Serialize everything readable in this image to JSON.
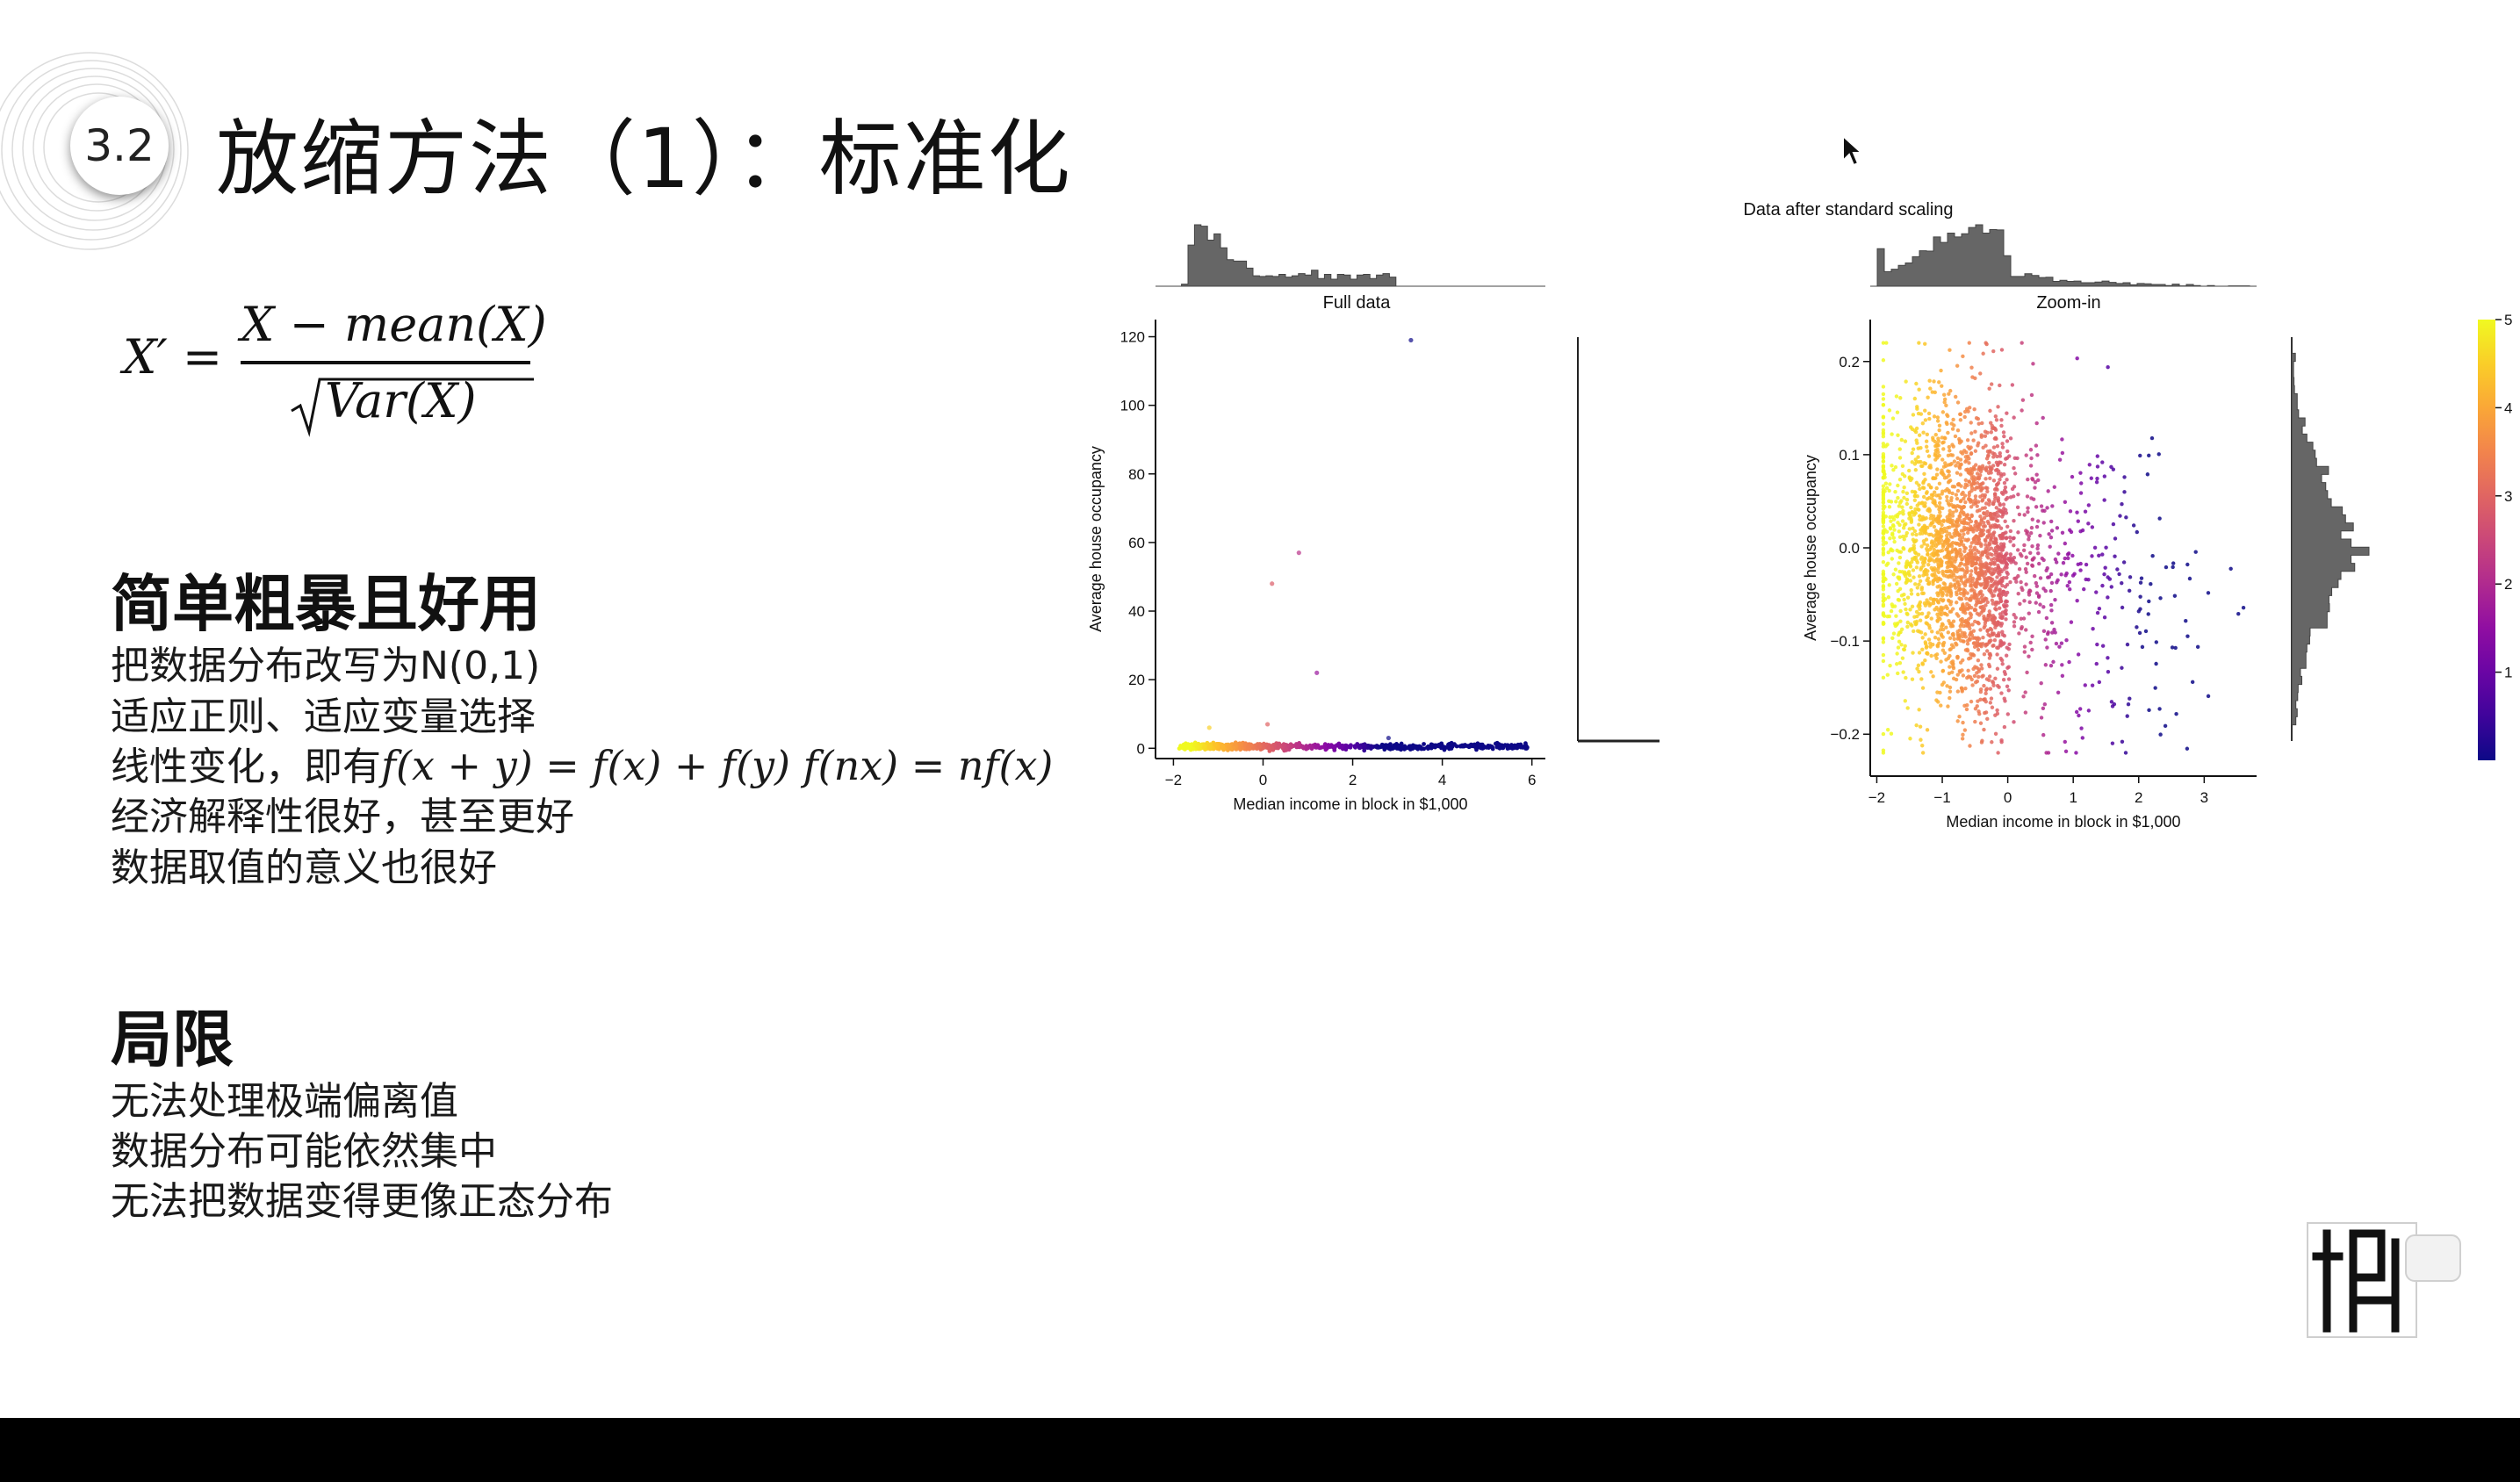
{
  "slide": {
    "badge_number": "3.2",
    "title": "放缩方法（1）：标准化",
    "formula": {
      "lhs": "X′ =",
      "numerator": "X − mean(X)",
      "denominator": "Var(X)"
    },
    "pros": {
      "heading": "简单粗暴且好用",
      "items": [
        "把数据分布改写为N(0,1)",
        "适应正则、适应变量选择",
        "线性变化，即有",
        "经济解释性很好，甚至更好",
        "数据取值的意义也很好"
      ],
      "linearity_formula": "f(x + y) = f(x) + f(y)  f(nx) = nf(x)"
    },
    "cons": {
      "heading": "局限",
      "items": [
        "无法处理极端偏离值",
        "数据分布可能依然集中",
        "无法把数据变得更像正态分布"
      ]
    }
  },
  "figure": {
    "suptitle": "Data after standard scaling",
    "colorbar": {
      "colormap": "plasma",
      "range": [
        0,
        5
      ],
      "ticks": [
        "5",
        "4",
        "3",
        "2",
        "1"
      ]
    }
  },
  "chart_data": [
    {
      "type": "scatter",
      "title": "Full data",
      "xlabel": "Median income in block in $1,000",
      "ylabel": "Average house occupancy",
      "xlim": [
        -2.4,
        6.3
      ],
      "ylim": [
        -3,
        125
      ],
      "xticks": [
        "−2",
        "0",
        "2",
        "4",
        "6"
      ],
      "yticks": [
        "0",
        "20",
        "40",
        "60",
        "80",
        "100",
        "120"
      ],
      "xtick_values": [
        -2,
        0,
        2,
        4,
        6
      ],
      "ytick_values": [
        0,
        20,
        40,
        60,
        80,
        100,
        120
      ],
      "outliers": [
        {
          "x": 3.3,
          "y": 119
        },
        {
          "x": 0.2,
          "y": 48
        },
        {
          "x": 0.8,
          "y": 57
        },
        {
          "x": 1.2,
          "y": 22
        },
        {
          "x": -1.2,
          "y": 6
        },
        {
          "x": 0.1,
          "y": 7
        },
        {
          "x": 2.8,
          "y": 3
        }
      ],
      "bulk_x_range": [
        -1.9,
        5.9
      ],
      "bulk_y_level": 0.5
    },
    {
      "type": "scatter",
      "title": "Zoom-in",
      "xlabel": "Median income in block in $1,000",
      "ylabel": "Average house occupancy",
      "xlim": [
        -2.1,
        3.8
      ],
      "ylim": [
        -0.245,
        0.245
      ],
      "xticks": [
        "−2",
        "−1",
        "0",
        "1",
        "2",
        "3"
      ],
      "yticks": [
        "−0.2",
        "−0.1",
        "0.0",
        "0.1",
        "0.2"
      ],
      "xtick_values": [
        -2,
        -1,
        0,
        1,
        2,
        3
      ],
      "ytick_values": [
        -0.2,
        -0.1,
        0.0,
        0.1,
        0.2
      ],
      "cloud": {
        "x_center": -0.6,
        "x_sd": 0.75,
        "x_range": [
          -1.9,
          3.6
        ],
        "y_center": -0.01,
        "y_sd": 0.08,
        "y_range": [
          -0.22,
          0.22
        ]
      }
    }
  ],
  "icons": {
    "cursor": "mouse-cursor-icon",
    "watermark": "channel-watermark-logo"
  }
}
